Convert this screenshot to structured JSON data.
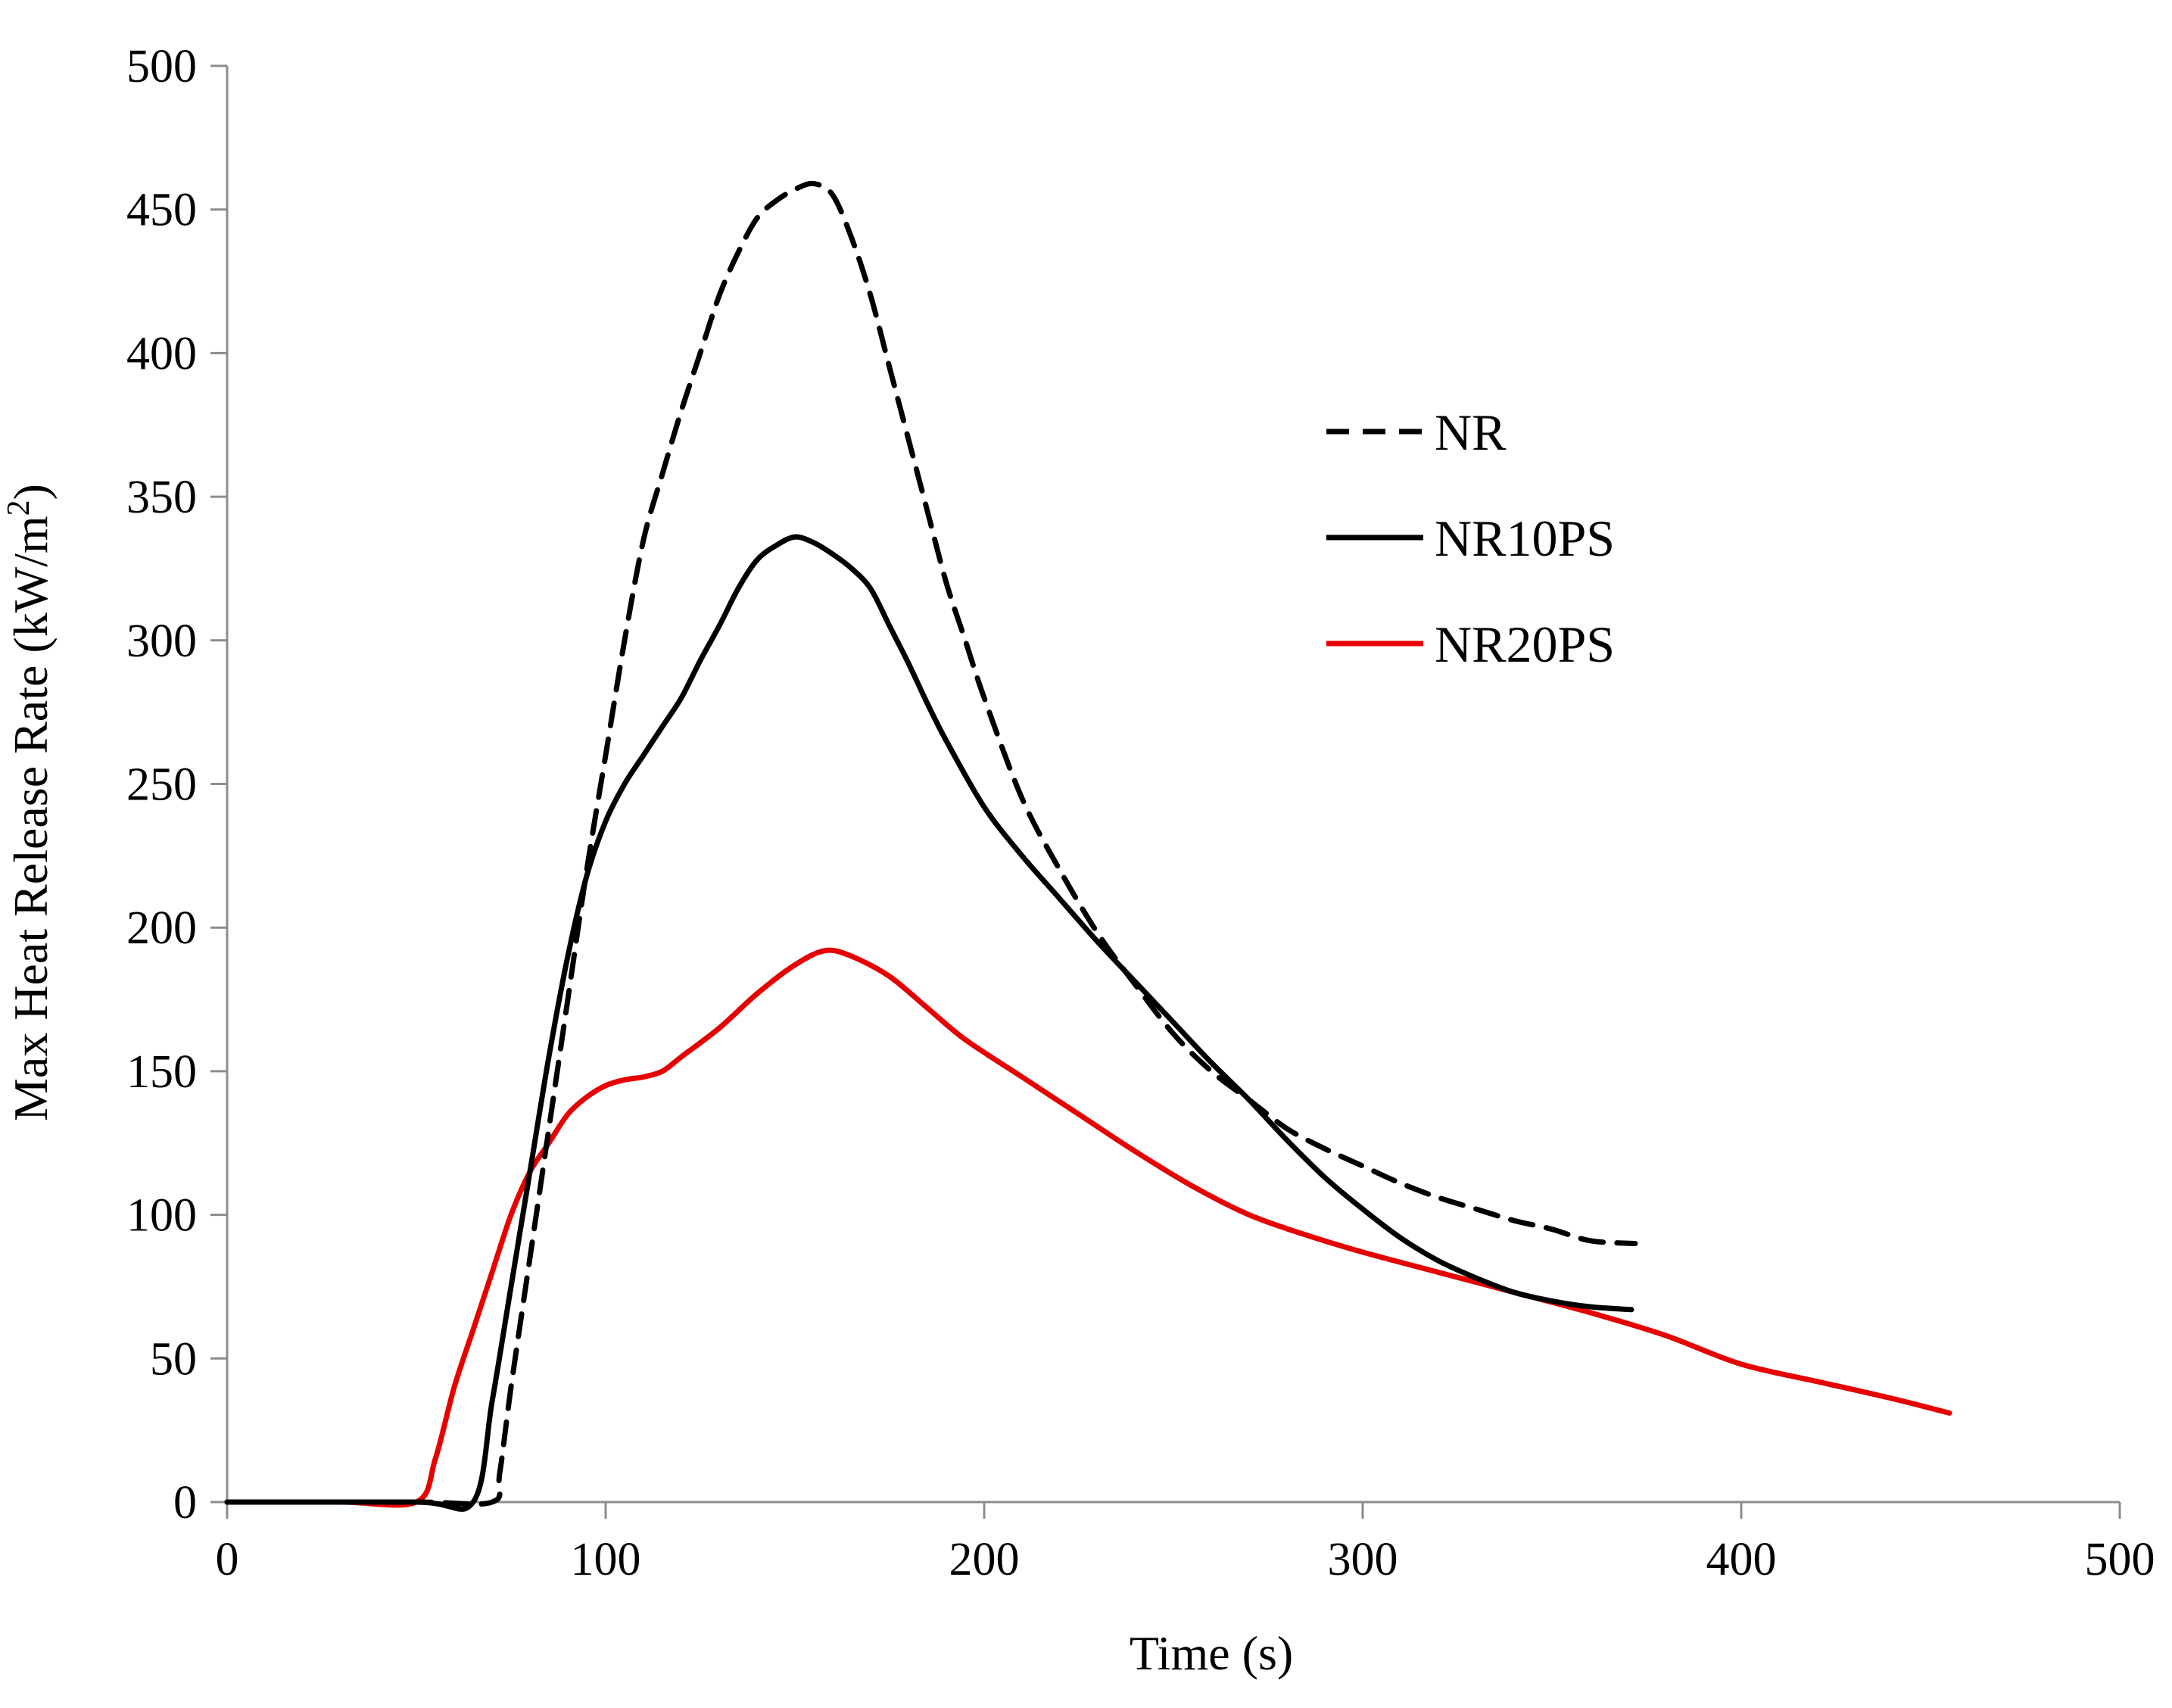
{
  "chart_data": {
    "type": "line",
    "title": "",
    "xlabel": "Time (s)",
    "ylabel_main": "Max Heat Release Rate (kW/m",
    "ylabel_sup": "2",
    "ylabel_close": ")",
    "xlim": [
      0,
      500
    ],
    "ylim": [
      0,
      500
    ],
    "xticks": [
      0,
      100,
      200,
      300,
      400,
      500
    ],
    "yticks": [
      0,
      50,
      100,
      150,
      200,
      250,
      300,
      350,
      400,
      450,
      500
    ],
    "grid": false,
    "legend_position": "upper-right",
    "series": [
      {
        "name": "NR",
        "color": "#000000",
        "dash": "dashed",
        "x": [
          0,
          50,
          70,
          72,
          75,
          80,
          85,
          90,
          95,
          100,
          105,
          110,
          115,
          120,
          125,
          130,
          135,
          140,
          145,
          150,
          155,
          160,
          165,
          170,
          175,
          180,
          185,
          190,
          195,
          200,
          210,
          220,
          230,
          240,
          250,
          260,
          270,
          280,
          290,
          300,
          310,
          320,
          330,
          340,
          350,
          360,
          372
        ],
        "y": [
          0,
          0,
          0,
          10,
          40,
          85,
          130,
          175,
          220,
          260,
          300,
          335,
          358,
          380,
          400,
          420,
          435,
          447,
          453,
          457,
          459,
          455,
          440,
          420,
          395,
          370,
          345,
          320,
          300,
          280,
          245,
          220,
          198,
          180,
          163,
          150,
          140,
          130,
          123,
          117,
          111,
          106,
          102,
          98,
          95,
          91,
          90
        ]
      },
      {
        "name": "NR10PS",
        "color": "#000000",
        "dash": "solid",
        "x": [
          0,
          50,
          65,
          70,
          75,
          80,
          85,
          90,
          95,
          100,
          105,
          110,
          115,
          120,
          125,
          130,
          135,
          140,
          145,
          150,
          155,
          160,
          165,
          170,
          175,
          180,
          185,
          190,
          200,
          210,
          220,
          230,
          240,
          250,
          260,
          270,
          280,
          290,
          300,
          310,
          320,
          330,
          340,
          350,
          360,
          371
        ],
        "y": [
          0,
          0,
          0,
          35,
          75,
          115,
          155,
          190,
          218,
          237,
          250,
          260,
          270,
          280,
          293,
          305,
          318,
          328,
          333,
          336,
          334,
          330,
          325,
          318,
          305,
          292,
          278,
          265,
          242,
          225,
          210,
          195,
          181,
          167,
          153,
          140,
          126,
          113,
          102,
          92,
          84,
          78,
          73,
          70,
          68,
          67
        ]
      },
      {
        "name": "NR20PS",
        "color": "#e60000",
        "dash": "solid",
        "x": [
          0,
          30,
          50,
          55,
          60,
          65,
          70,
          75,
          80,
          85,
          90,
          95,
          100,
          105,
          110,
          115,
          120,
          130,
          140,
          150,
          158,
          165,
          175,
          185,
          195,
          210,
          225,
          240,
          255,
          270,
          285,
          300,
          320,
          340,
          360,
          380,
          400,
          420,
          440,
          455
        ],
        "y": [
          0,
          0,
          0,
          15,
          40,
          60,
          80,
          100,
          115,
          125,
          135,
          141,
          145,
          147,
          148,
          150,
          155,
          165,
          177,
          187,
          192,
          190,
          183,
          172,
          161,
          148,
          135,
          122,
          110,
          100,
          93,
          87,
          80,
          73,
          66,
          58,
          48,
          42,
          36,
          31
        ]
      }
    ]
  }
}
